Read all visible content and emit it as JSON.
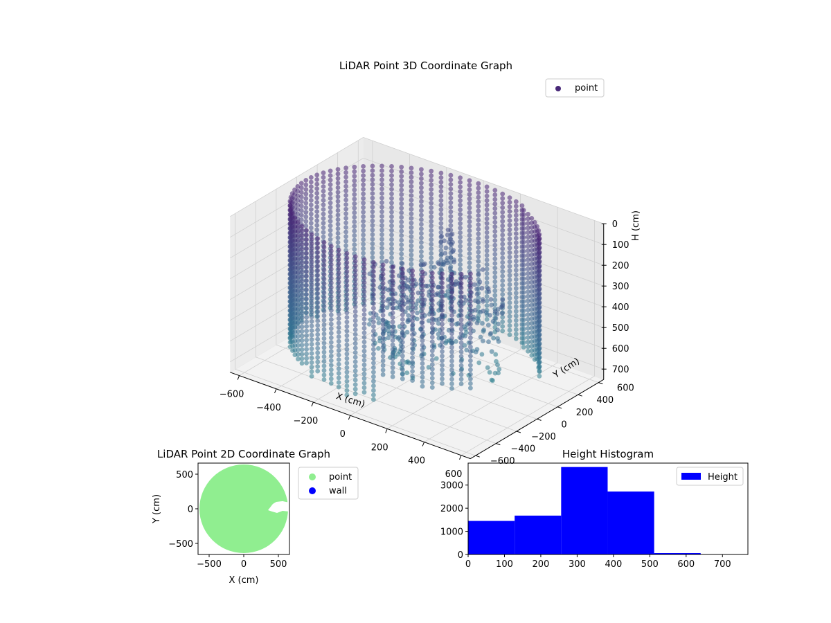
{
  "chart_data": [
    {
      "type": "scatter3d",
      "title": "LiDAR Point 3D Coordinate Graph",
      "xlabel": "X (cm)",
      "ylabel": "Y (cm)",
      "zlabel": "H (cm)",
      "xlim": [
        -650,
        650
      ],
      "ylim": [
        -650,
        650
      ],
      "zlim": [
        750,
        0
      ],
      "x_ticks": [
        -600,
        -400,
        -200,
        0,
        200,
        400,
        600
      ],
      "y_ticks": [
        -600,
        -400,
        -200,
        0,
        200,
        400,
        600
      ],
      "z_ticks": [
        0,
        100,
        200,
        300,
        400,
        500,
        600,
        700
      ],
      "colormap": "viridis",
      "legend": {
        "position": "top-right",
        "entries": [
          "point"
        ]
      },
      "legend_color": "#482878",
      "series": [
        {
          "name": "point",
          "description_of_shape": "ring",
          "ring_radius": 600,
          "ring_gap_start_deg": -35,
          "ring_gap_end_deg": 25,
          "ring_height_range": [
            0,
            650
          ],
          "interior_cluster_center": [
            50,
            100
          ],
          "interior_cluster_height_range": [
            300,
            700
          ]
        }
      ]
    },
    {
      "type": "scatter",
      "title": "LiDAR Point 2D Coordinate Graph",
      "xlabel": "X (cm)",
      "ylabel": "Y (cm)",
      "xlim": [
        -660,
        660
      ],
      "ylim": [
        -660,
        660
      ],
      "x_ticks": [
        -500,
        0,
        500
      ],
      "y_ticks": [
        -500,
        0,
        500
      ],
      "legend": {
        "position": "outside-right",
        "entries": [
          {
            "name": "point",
            "color": "#90ee90"
          },
          {
            "name": "wall",
            "color": "#0000ff"
          }
        ]
      },
      "series": [
        {
          "name": "point",
          "color": "#90ee90",
          "shape": "filled-disk",
          "radius": 640,
          "notch_points": [
            [
              660,
              90
            ],
            [
              560,
              110
            ],
            [
              470,
              100
            ],
            [
              420,
              70
            ],
            [
              350,
              -20
            ],
            [
              410,
              -40
            ],
            [
              480,
              -60
            ],
            [
              560,
              -30
            ],
            [
              660,
              -40
            ]
          ]
        },
        {
          "name": "wall",
          "color": "#0000ff",
          "points": []
        }
      ]
    },
    {
      "type": "bar",
      "title": "Height Histogram",
      "xlim": [
        0,
        770
      ],
      "ylim": [
        0,
        3950
      ],
      "x_ticks": [
        0,
        100,
        200,
        300,
        400,
        500,
        600,
        700
      ],
      "y_ticks": [
        0,
        1000,
        2000,
        3000
      ],
      "bin_edges": [
        0,
        128,
        256,
        384,
        512,
        640,
        768
      ],
      "values": [
        1450,
        1680,
        3780,
        2720,
        60,
        10
      ],
      "color": "#0000ff",
      "legend": {
        "position": "top-right",
        "entries": [
          {
            "name": "Height",
            "color": "#0000ff"
          }
        ]
      }
    }
  ]
}
